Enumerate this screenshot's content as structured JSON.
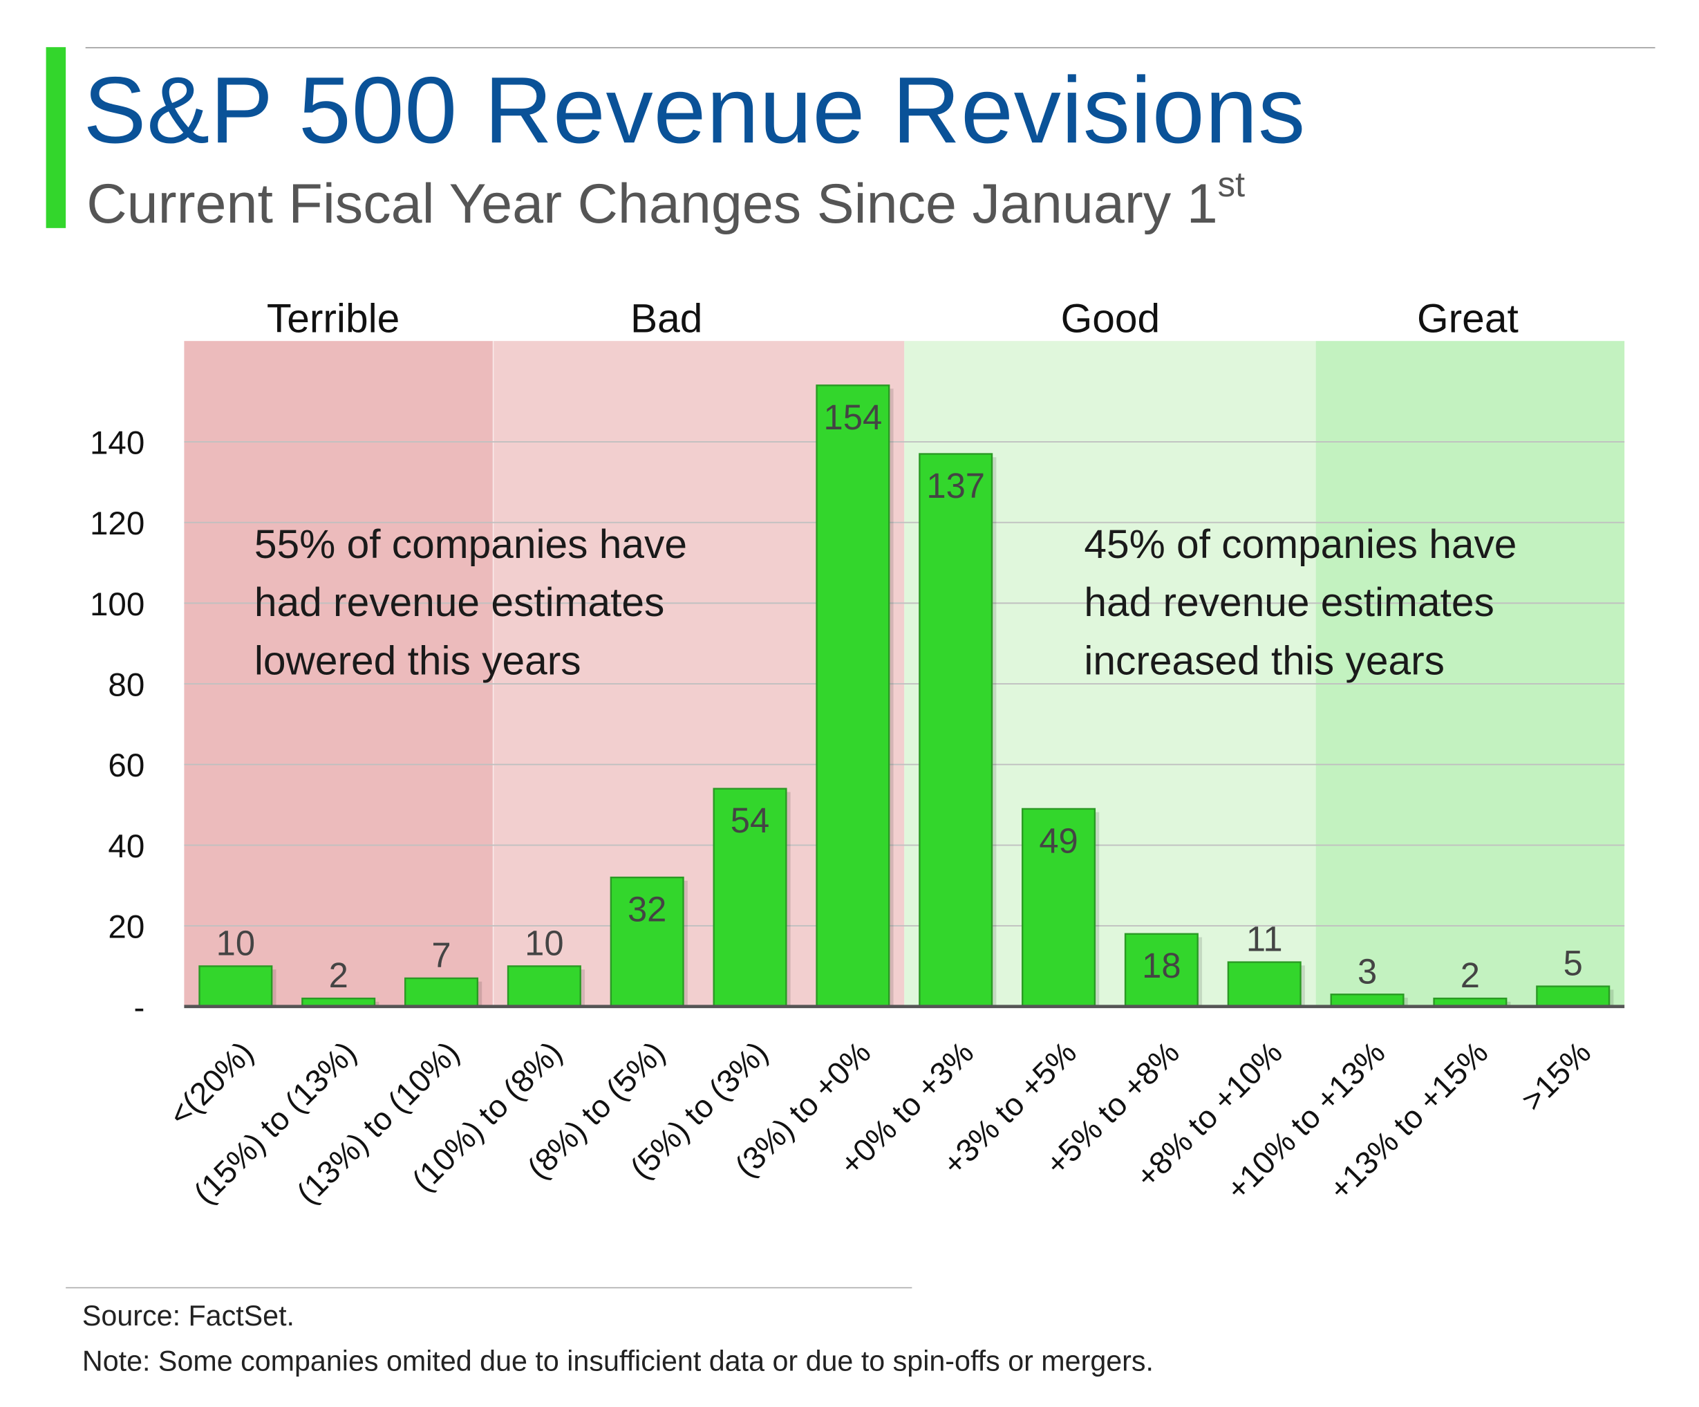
{
  "header": {
    "title": "S&P 500 Revenue Revisions",
    "subtitle": "Current Fiscal Year Changes Since January 1",
    "subtitle_sup": "st"
  },
  "colors": {
    "title": "#0a5298",
    "bar": "#33d62c",
    "bar_border": "#2a9a24",
    "terrible_bg": "#ecbbbc",
    "bad_bg": "#f2cfcf",
    "good_bg": "#e0f7dc",
    "great_bg": "#c3f2c0"
  },
  "chart_data": {
    "type": "bar",
    "title": "S&P 500 Revenue Revisions",
    "xlabel": "",
    "ylabel": "",
    "ylim": [
      0,
      165
    ],
    "yticks": [
      0,
      20,
      40,
      60,
      80,
      100,
      120,
      140
    ],
    "ytick_labels": [
      "-",
      "20",
      "40",
      "60",
      "80",
      "100",
      "120",
      "140"
    ],
    "grid": true,
    "categories": [
      "<(20%)",
      "(15%) to (13%)",
      "(13%) to (10%)",
      "(10%) to (8%)",
      "(8%) to (5%)",
      "(5%) to (3%)",
      "(3%) to +0%",
      "+0% to +3%",
      "+3% to +5%",
      "+5% to +8%",
      "+8% to +10%",
      "+10% to +13%",
      "+13% to +15%",
      ">15%"
    ],
    "values": [
      10,
      2,
      7,
      10,
      32,
      54,
      154,
      137,
      49,
      18,
      11,
      3,
      2,
      5
    ],
    "zones": [
      {
        "label": "Terrible",
        "from_index": 0,
        "to_index": 2
      },
      {
        "label": "Bad",
        "from_index": 3,
        "to_index": 6
      },
      {
        "label": "Good",
        "from_index": 7,
        "to_index": 10
      },
      {
        "label": "Great",
        "from_index": 11,
        "to_index": 13
      }
    ],
    "annotations": [
      {
        "lines": [
          "55% of companies have",
          "had revenue estimates",
          "lowered this years"
        ]
      },
      {
        "lines": [
          "45% of companies have",
          "had revenue estimates",
          "increased this years"
        ]
      }
    ]
  },
  "footer": {
    "source": "Source: FactSet.",
    "note": "Note: Some companies omited due to insufficient data or due to spin-offs or mergers."
  }
}
